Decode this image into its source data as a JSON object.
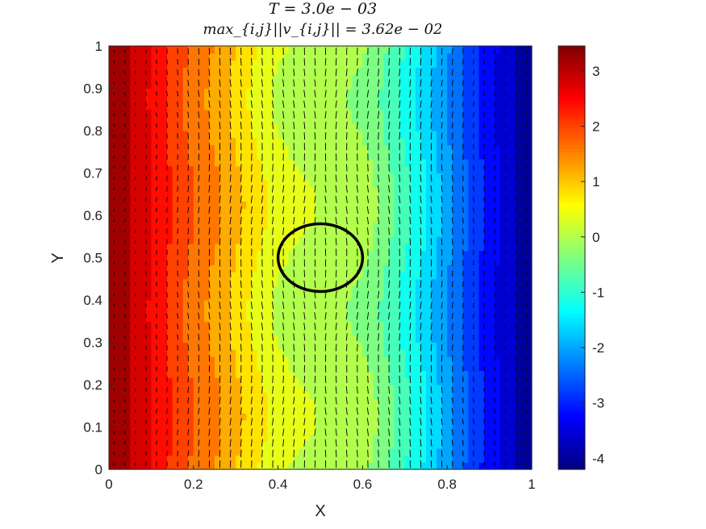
{
  "chart_data": {
    "type": "heatmap",
    "title_line1": "T = 3.0e − 03",
    "title_line2": "max_{i,j}||v_{i,j}|| = 3.62e − 02",
    "xlabel": "X",
    "ylabel": "Y",
    "xlim": [
      0,
      1
    ],
    "ylim": [
      0,
      1
    ],
    "x_ticks": [
      "0",
      "0.2",
      "0.4",
      "0.6",
      "0.8",
      "1"
    ],
    "y_ticks": [
      "0",
      "0.1",
      "0.2",
      "0.3",
      "0.4",
      "0.5",
      "0.6",
      "0.7",
      "0.8",
      "0.9",
      "1"
    ],
    "colorbar": {
      "range": [
        -4.2,
        3.45
      ],
      "ticks": [
        "3",
        "2",
        "1",
        "0",
        "-1",
        "-2",
        "-3",
        "-4"
      ],
      "colormap": "jet"
    },
    "field_profile": {
      "x": [
        0,
        0.05,
        0.1,
        0.15,
        0.2,
        0.25,
        0.3,
        0.35,
        0.4,
        0.45,
        0.5,
        0.55,
        0.6,
        0.65,
        0.7,
        0.75,
        0.8,
        0.85,
        0.9,
        0.95,
        1.0
      ],
      "value": [
        3.4,
        3.0,
        2.6,
        2.1,
        1.7,
        1.4,
        1.0,
        0.6,
        0.3,
        0.1,
        0.0,
        0.0,
        -0.1,
        -0.5,
        -1.0,
        -1.5,
        -2.1,
        -2.7,
        -3.2,
        -3.7,
        -4.2
      ]
    },
    "interface_circle": {
      "center": [
        0.5,
        0.5
      ],
      "radius_x": 0.1,
      "radius_y": 0.08
    },
    "max_velocity": 0.0362
  }
}
